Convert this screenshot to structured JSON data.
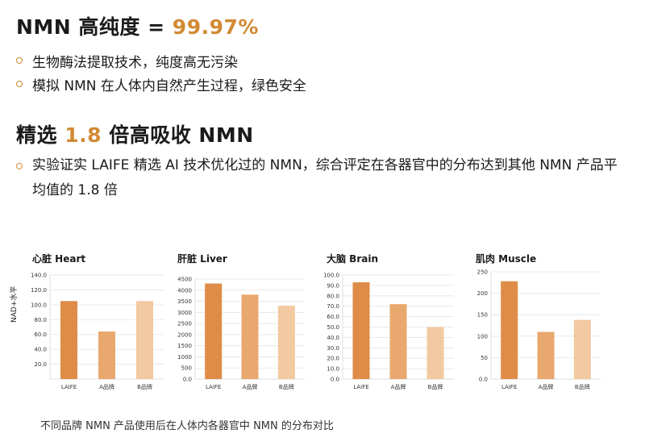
{
  "heading1": {
    "prefix": "NMN 高纯度 = ",
    "highlight": "99.97%"
  },
  "bullets1": [
    "生物酶法提取技术，纯度高无污染",
    "模拟 NMN 在人体内自然产生过程，绿色安全"
  ],
  "heading2": {
    "prefix": "精选 ",
    "highlight": "1.8",
    "suffix": " 倍高吸收 NMN"
  },
  "paragraph": "实验证实 LAIFE 精选 AI 技术优化过的 NMN，综合评定在各器官中的分布达到其他 NMN 产品平均值的 1.8 倍",
  "ylabel": "NAD+水平",
  "caption": "不同品牌 NMN 产品使用后在人体内各器官中 NMN 的分布对比",
  "colors": {
    "accent": "#d28a34",
    "bars": [
      "#de8c47",
      "#e9a86e",
      "#f2c9a0"
    ]
  },
  "chart_data": [
    {
      "type": "bar",
      "title": "心脏 Heart",
      "categories": [
        "LAIFE",
        "A品牌",
        "B品牌"
      ],
      "values": [
        105,
        64,
        105
      ],
      "ylim": [
        0,
        140
      ],
      "yticks": [
        20,
        40,
        60,
        80,
        100,
        120,
        140
      ],
      "tick_labels": [
        "20.0",
        "40.0",
        "60.0",
        "80.0",
        "100.0",
        "120.0",
        "140.0"
      ]
    },
    {
      "type": "bar",
      "title": "肝脏 Liver",
      "categories": [
        "LAIFE",
        "A品牌",
        "B品牌"
      ],
      "values": [
        4300,
        3800,
        3300
      ],
      "ylim": [
        0,
        4500
      ],
      "yticks": [
        0,
        500,
        1000,
        1500,
        2000,
        2500,
        3000,
        3500,
        4000,
        4500
      ],
      "tick_labels": [
        "0.0",
        "500",
        "1000",
        "1500",
        "2000",
        "2500",
        "3000",
        "3500",
        "4000",
        "4500"
      ]
    },
    {
      "type": "bar",
      "title": "大脑 Brain",
      "categories": [
        "LAIFE",
        "A品牌",
        "B品牌"
      ],
      "values": [
        93,
        72,
        50
      ],
      "ylim": [
        0,
        100
      ],
      "yticks": [
        0,
        10,
        20,
        30,
        40,
        50,
        60,
        70,
        80,
        90,
        100
      ],
      "tick_labels": [
        "0.0",
        "10.0",
        "20.0",
        "30.0",
        "40.0",
        "50.0",
        "60.0",
        "70.0",
        "80.0",
        "90.0",
        "100.0"
      ]
    },
    {
      "type": "bar",
      "title": "肌肉 Muscle",
      "categories": [
        "LAIFE",
        "A品牌",
        "B品牌"
      ],
      "values": [
        228,
        110,
        138
      ],
      "ylim": [
        0,
        250
      ],
      "yticks": [
        0,
        50,
        100,
        150,
        200,
        250
      ],
      "tick_labels": [
        "0.0",
        "50",
        "100",
        "150",
        "200",
        "250"
      ]
    }
  ]
}
